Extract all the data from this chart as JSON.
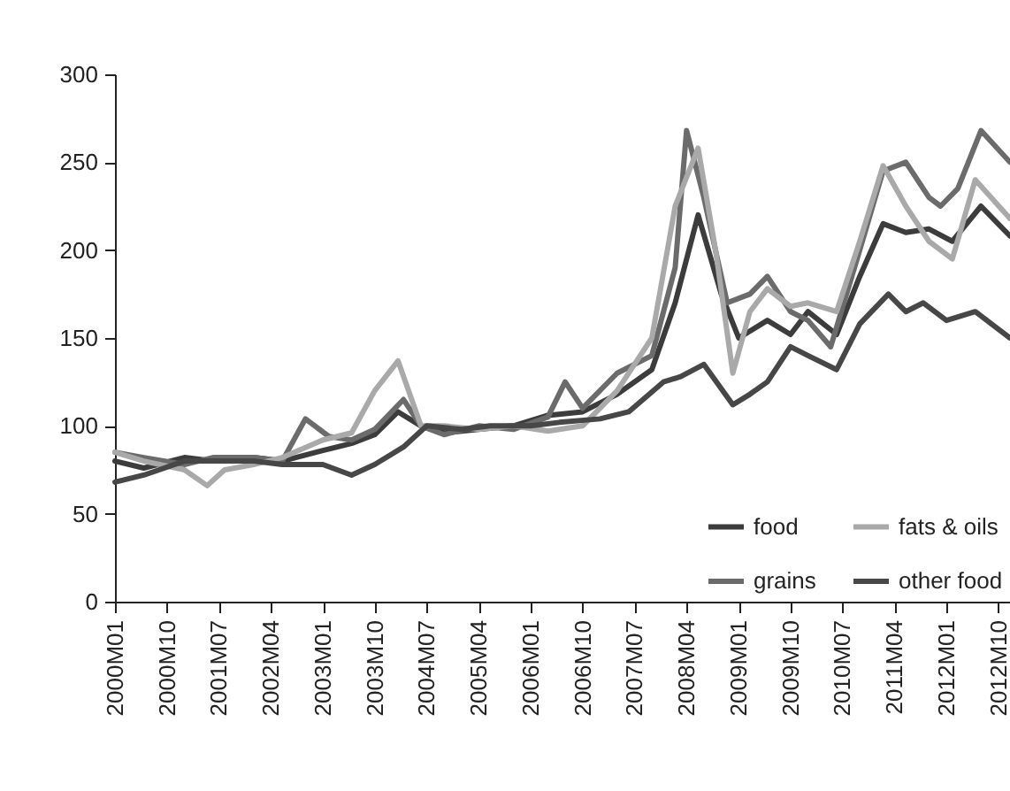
{
  "chart_data": {
    "type": "line",
    "xlim": [
      "2000-01",
      "2012-12"
    ],
    "xticks": [
      {
        "value": "2000-01",
        "label": "2000M01"
      },
      {
        "value": "2000-10",
        "label": "2000M10"
      },
      {
        "value": "2001-07",
        "label": "2001M07"
      },
      {
        "value": "2002-04",
        "label": "2002M04"
      },
      {
        "value": "2003-01",
        "label": "2003M01"
      },
      {
        "value": "2003-10",
        "label": "2003M10"
      },
      {
        "value": "2004-07",
        "label": "2004M07"
      },
      {
        "value": "2005-04",
        "label": "2005M04"
      },
      {
        "value": "2006-01",
        "label": "2006M01"
      },
      {
        "value": "2006-10",
        "label": "2006M10"
      },
      {
        "value": "2007-07",
        "label": "2007M07"
      },
      {
        "value": "2008-04",
        "label": "2008M04"
      },
      {
        "value": "2009-01",
        "label": "2009M01"
      },
      {
        "value": "2009-10",
        "label": "2009M10"
      },
      {
        "value": "2010-07",
        "label": "2010M07"
      },
      {
        "value": "2011-04",
        "label": "2011M04"
      },
      {
        "value": "2012-01",
        "label": "2012M01"
      },
      {
        "value": "2012-10",
        "label": "2012M10"
      }
    ],
    "ylim": [
      0,
      300
    ],
    "yticks": [
      0,
      50,
      100,
      150,
      200,
      250,
      300
    ],
    "grid": false,
    "legend": "bottom right",
    "line_style": "solid",
    "marker": "none",
    "series": [
      {
        "name": "food",
        "color": "#3c3c3c",
        "x": [
          "2000-01",
          "2000-06",
          "2001-01",
          "2001-06",
          "2002-01",
          "2002-06",
          "2003-01",
          "2003-06",
          "2003-10",
          "2004-02",
          "2004-06",
          "2004-10",
          "2005-04",
          "2005-10",
          "2006-04",
          "2006-10",
          "2007-04",
          "2007-10",
          "2008-02",
          "2008-06",
          "2008-10",
          "2009-01",
          "2009-06",
          "2009-10",
          "2010-01",
          "2010-06",
          "2010-10",
          "2011-02",
          "2011-06",
          "2011-10",
          "2012-02",
          "2012-07",
          "2012-12"
        ],
        "values": [
          80,
          76,
          82,
          80,
          82,
          80,
          86,
          90,
          95,
          108,
          100,
          96,
          98,
          100,
          106,
          108,
          118,
          132,
          170,
          220,
          175,
          150,
          160,
          152,
          165,
          152,
          185,
          215,
          210,
          212,
          205,
          225,
          208
        ]
      },
      {
        "name": "grains",
        "color": "#6b6b6b",
        "x": [
          "2000-01",
          "2000-06",
          "2001-01",
          "2001-06",
          "2002-01",
          "2002-06",
          "2002-10",
          "2003-02",
          "2003-06",
          "2003-10",
          "2004-03",
          "2004-06",
          "2004-10",
          "2005-04",
          "2005-10",
          "2006-04",
          "2006-07",
          "2006-10",
          "2007-04",
          "2007-10",
          "2008-02",
          "2008-04",
          "2008-07",
          "2008-11",
          "2009-03",
          "2009-06",
          "2009-10",
          "2010-01",
          "2010-05",
          "2010-10",
          "2011-02",
          "2011-06",
          "2011-10",
          "2011-12",
          "2012-03",
          "2012-07",
          "2012-12"
        ],
        "values": [
          85,
          82,
          78,
          82,
          82,
          80,
          104,
          94,
          92,
          98,
          115,
          100,
          95,
          100,
          98,
          105,
          125,
          110,
          130,
          140,
          190,
          268,
          230,
          170,
          175,
          185,
          165,
          160,
          145,
          200,
          245,
          250,
          230,
          225,
          235,
          268,
          250
        ]
      },
      {
        "name": "fats & oils",
        "color": "#a9a9a9",
        "x": [
          "2000-01",
          "2000-06",
          "2001-01",
          "2001-05",
          "2001-08",
          "2002-01",
          "2002-06",
          "2003-01",
          "2003-06",
          "2003-10",
          "2004-02",
          "2004-06",
          "2004-10",
          "2005-04",
          "2005-10",
          "2006-04",
          "2006-10",
          "2007-04",
          "2007-10",
          "2008-02",
          "2008-06",
          "2008-09",
          "2008-12",
          "2009-03",
          "2009-06",
          "2009-10",
          "2010-01",
          "2010-06",
          "2010-10",
          "2011-02",
          "2011-06",
          "2011-10",
          "2012-02",
          "2012-06",
          "2012-12"
        ],
        "values": [
          85,
          80,
          75,
          66,
          75,
          78,
          82,
          92,
          96,
          120,
          137,
          100,
          100,
          98,
          100,
          97,
          100,
          120,
          150,
          225,
          258,
          200,
          130,
          165,
          178,
          168,
          170,
          165,
          205,
          248,
          225,
          205,
          195,
          240,
          218
        ]
      },
      {
        "name": "other food",
        "color": "#474747",
        "x": [
          "2000-01",
          "2000-06",
          "2001-01",
          "2001-06",
          "2002-01",
          "2002-06",
          "2003-01",
          "2003-06",
          "2003-10",
          "2004-03",
          "2004-07",
          "2005-01",
          "2005-06",
          "2006-01",
          "2006-06",
          "2007-01",
          "2007-06",
          "2007-12",
          "2008-03",
          "2008-07",
          "2008-12",
          "2009-03",
          "2009-06",
          "2009-10",
          "2010-01",
          "2010-06",
          "2010-10",
          "2011-03",
          "2011-06",
          "2011-09",
          "2012-01",
          "2012-06",
          "2012-12"
        ],
        "values": [
          68,
          72,
          80,
          80,
          80,
          78,
          78,
          72,
          78,
          88,
          100,
          98,
          100,
          100,
          102,
          104,
          108,
          125,
          128,
          135,
          112,
          118,
          125,
          145,
          140,
          132,
          158,
          175,
          165,
          170,
          160,
          165,
          150
        ]
      }
    ]
  }
}
